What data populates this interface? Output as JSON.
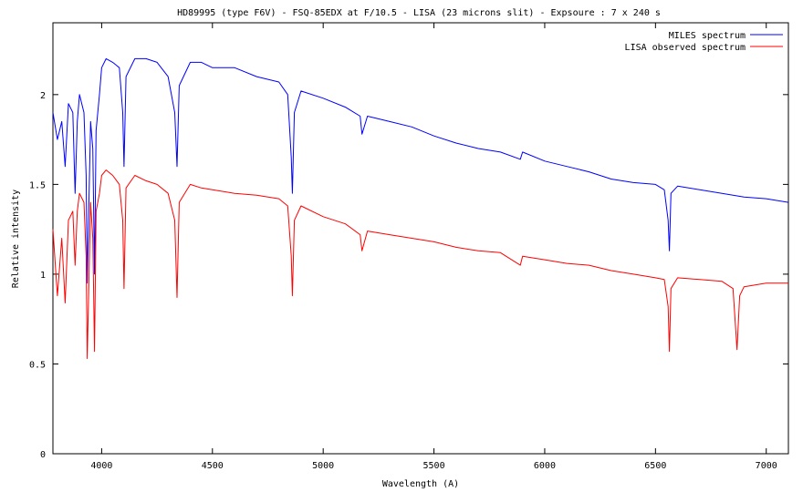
{
  "chart_data": {
    "type": "line",
    "title": "HD89995 (type F6V) - FSQ-85EDX at F/10.5 - LISA (23 microns slit) - Expsoure : 7 x 240 s",
    "xlabel": "Wavelength (A)",
    "ylabel": "Relative intensity",
    "xlim": [
      3780,
      7100
    ],
    "ylim": [
      0,
      2.4
    ],
    "xticks": [
      "4000",
      "4500",
      "5000",
      "5500",
      "6000",
      "6500",
      "7000"
    ],
    "yticks": [
      "0",
      "0.5",
      "1",
      "1.5",
      "2"
    ],
    "grid": false,
    "legend_position": "top-right",
    "series": [
      {
        "name": "MILES spectrum",
        "color": "#0000ff",
        "x": [
          3780,
          3800,
          3820,
          3835,
          3850,
          3870,
          3880,
          3890,
          3900,
          3920,
          3930,
          3935,
          3950,
          3960,
          3968,
          3975,
          3990,
          4000,
          4020,
          4050,
          4080,
          4095,
          4101,
          4110,
          4150,
          4200,
          4250,
          4300,
          4330,
          4340,
          4350,
          4400,
          4450,
          4500,
          4600,
          4700,
          4800,
          4840,
          4856,
          4861,
          4870,
          4900,
          5000,
          5100,
          5167,
          5175,
          5200,
          5300,
          5400,
          5500,
          5600,
          5700,
          5800,
          5890,
          5900,
          6000,
          6100,
          6200,
          6300,
          6400,
          6500,
          6540,
          6557,
          6563,
          6570,
          6600,
          6700,
          6800,
          6900,
          7000,
          7100
        ],
        "y": [
          1.9,
          1.75,
          1.85,
          1.6,
          1.95,
          1.9,
          1.45,
          1.85,
          2.0,
          1.9,
          1.55,
          0.95,
          1.85,
          1.7,
          1.0,
          1.8,
          2.0,
          2.15,
          2.2,
          2.18,
          2.15,
          1.9,
          1.6,
          2.1,
          2.2,
          2.2,
          2.18,
          2.1,
          1.9,
          1.6,
          2.05,
          2.18,
          2.18,
          2.15,
          2.15,
          2.1,
          2.07,
          2.0,
          1.65,
          1.45,
          1.9,
          2.02,
          1.98,
          1.93,
          1.88,
          1.78,
          1.88,
          1.85,
          1.82,
          1.77,
          1.73,
          1.7,
          1.68,
          1.64,
          1.68,
          1.63,
          1.6,
          1.57,
          1.53,
          1.51,
          1.5,
          1.47,
          1.3,
          1.13,
          1.45,
          1.49,
          1.47,
          1.45,
          1.43,
          1.42,
          1.4
        ]
      },
      {
        "name": "LISA observed spectrum",
        "color": "#ff0000",
        "x": [
          3780,
          3800,
          3820,
          3835,
          3850,
          3870,
          3880,
          3890,
          3900,
          3920,
          3930,
          3935,
          3950,
          3960,
          3968,
          3975,
          3990,
          4000,
          4020,
          4050,
          4080,
          4095,
          4101,
          4110,
          4150,
          4200,
          4250,
          4300,
          4330,
          4340,
          4350,
          4400,
          4450,
          4500,
          4600,
          4700,
          4800,
          4840,
          4856,
          4861,
          4870,
          4900,
          5000,
          5100,
          5167,
          5175,
          5200,
          5300,
          5400,
          5500,
          5600,
          5700,
          5800,
          5890,
          5900,
          6000,
          6100,
          6200,
          6300,
          6400,
          6500,
          6540,
          6557,
          6563,
          6570,
          6600,
          6700,
          6800,
          6850,
          6868,
          6880,
          6900,
          7000,
          7100
        ],
        "y": [
          1.25,
          0.88,
          1.2,
          0.84,
          1.3,
          1.35,
          1.05,
          1.35,
          1.45,
          1.4,
          1.1,
          0.53,
          1.4,
          1.2,
          0.57,
          1.35,
          1.45,
          1.55,
          1.58,
          1.55,
          1.5,
          1.3,
          0.92,
          1.48,
          1.55,
          1.52,
          1.5,
          1.45,
          1.3,
          0.87,
          1.4,
          1.5,
          1.48,
          1.47,
          1.45,
          1.44,
          1.42,
          1.38,
          1.1,
          0.88,
          1.3,
          1.38,
          1.32,
          1.28,
          1.22,
          1.13,
          1.24,
          1.22,
          1.2,
          1.18,
          1.15,
          1.13,
          1.12,
          1.05,
          1.1,
          1.08,
          1.06,
          1.05,
          1.02,
          1.0,
          0.98,
          0.97,
          0.82,
          0.57,
          0.92,
          0.98,
          0.97,
          0.96,
          0.92,
          0.58,
          0.88,
          0.93,
          0.95,
          0.95
        ]
      }
    ]
  }
}
